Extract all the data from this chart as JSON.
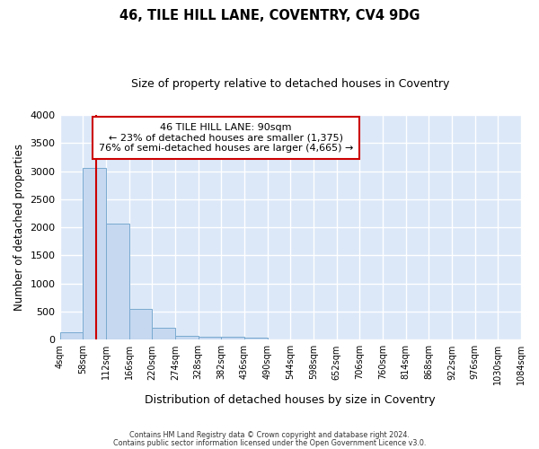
{
  "title1": "46, TILE HILL LANE, COVENTRY, CV4 9DG",
  "title2": "Size of property relative to detached houses in Coventry",
  "xlabel": "Distribution of detached houses by size in Coventry",
  "ylabel": "Number of detached properties",
  "bin_labels": [
    "4sqm",
    "58sqm",
    "112sqm",
    "166sqm",
    "220sqm",
    "274sqm",
    "328sqm",
    "382sqm",
    "436sqm",
    "490sqm",
    "544sqm",
    "598sqm",
    "652sqm",
    "706sqm",
    "760sqm",
    "814sqm",
    "868sqm",
    "922sqm",
    "976sqm",
    "1030sqm",
    "1084sqm"
  ],
  "bin_edges": [
    4,
    58,
    112,
    166,
    220,
    274,
    328,
    382,
    436,
    490,
    544,
    598,
    652,
    706,
    760,
    814,
    868,
    922,
    976,
    1030,
    1084
  ],
  "bar_heights": [
    140,
    3060,
    2060,
    555,
    215,
    75,
    50,
    45,
    40,
    0,
    0,
    0,
    0,
    0,
    0,
    0,
    0,
    0,
    0,
    0
  ],
  "bar_color": "#c5d8f0",
  "bar_edge_color": "#7aaad0",
  "red_line_x": 90,
  "red_line_color": "#cc0000",
  "annotation_line1": "46 TILE HILL LANE: 90sqm",
  "annotation_line2": "← 23% of detached houses are smaller (1,375)",
  "annotation_line3": "76% of semi-detached houses are larger (4,665) →",
  "annotation_box_color": "#ffffff",
  "annotation_box_edge": "#cc0000",
  "ylim": [
    0,
    4000
  ],
  "yticks": [
    0,
    500,
    1000,
    1500,
    2000,
    2500,
    3000,
    3500,
    4000
  ],
  "plot_bg_color": "#dce8f8",
  "fig_bg_color": "#ffffff",
  "grid_color": "#ffffff",
  "footer1": "Contains HM Land Registry data © Crown copyright and database right 2024.",
  "footer2": "Contains public sector information licensed under the Open Government Licence v3.0."
}
